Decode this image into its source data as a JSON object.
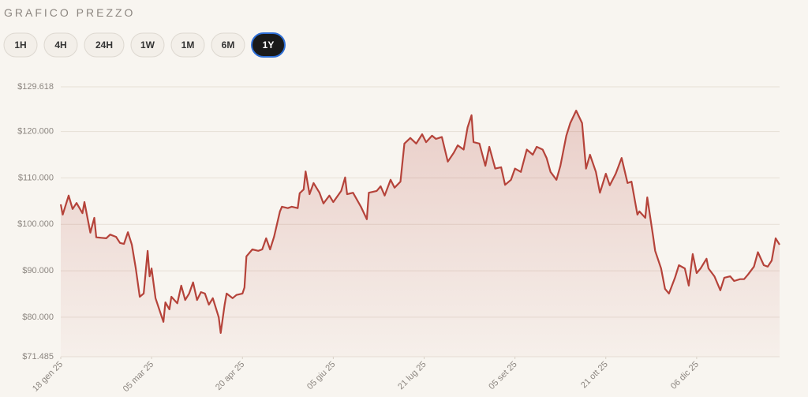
{
  "header": {
    "title": "GRAFICO PREZZO"
  },
  "range_buttons": {
    "options": [
      "1H",
      "4H",
      "24H",
      "1W",
      "1M",
      "6M",
      "1Y"
    ],
    "selected": 6
  },
  "chart_data": {
    "type": "line",
    "color": "#b5433a",
    "grid": true,
    "x": [
      "2025-01-18",
      "2025-01-19",
      "2025-01-22",
      "2025-01-24",
      "2025-01-26",
      "2025-01-29",
      "2025-01-30",
      "2025-02-02",
      "2025-02-04",
      "2025-02-05",
      "2025-02-10",
      "2025-02-12",
      "2025-02-15",
      "2025-02-17",
      "2025-02-19",
      "2025-02-21",
      "2025-02-23",
      "2025-02-25",
      "2025-02-27",
      "2025-03-01",
      "2025-03-03",
      "2025-03-04",
      "2025-03-05",
      "2025-03-07",
      "2025-03-11",
      "2025-03-12",
      "2025-03-14",
      "2025-03-15",
      "2025-03-18",
      "2025-03-20",
      "2025-03-22",
      "2025-03-24",
      "2025-03-26",
      "2025-03-28",
      "2025-03-30",
      "2025-04-01",
      "2025-04-03",
      "2025-04-05",
      "2025-04-08",
      "2025-04-09",
      "2025-04-11",
      "2025-04-12",
      "2025-04-15",
      "2025-04-17",
      "2025-04-20",
      "2025-04-21",
      "2025-04-22",
      "2025-04-25",
      "2025-04-28",
      "2025-04-30",
      "2025-05-02",
      "2025-05-04",
      "2025-05-06",
      "2025-05-09",
      "2025-05-10",
      "2025-05-13",
      "2025-05-15",
      "2025-05-18",
      "2025-05-19",
      "2025-05-21",
      "2025-05-22",
      "2025-05-24",
      "2025-05-26",
      "2025-05-29",
      "2025-05-31",
      "2025-06-03",
      "2025-06-05",
      "2025-06-09",
      "2025-06-11",
      "2025-06-12",
      "2025-06-15",
      "2025-06-19",
      "2025-06-22",
      "2025-06-23",
      "2025-06-27",
      "2025-06-29",
      "2025-07-01",
      "2025-07-04",
      "2025-07-06",
      "2025-07-09",
      "2025-07-11",
      "2025-07-14",
      "2025-07-17",
      "2025-07-20",
      "2025-07-22",
      "2025-07-25",
      "2025-07-27",
      "2025-07-30",
      "2025-08-02",
      "2025-08-05",
      "2025-08-07",
      "2025-08-10",
      "2025-08-12",
      "2025-08-14",
      "2025-08-15",
      "2025-08-18",
      "2025-08-21",
      "2025-08-23",
      "2025-08-26",
      "2025-08-29",
      "2025-08-31",
      "2025-09-03",
      "2025-09-05",
      "2025-09-08",
      "2025-09-11",
      "2025-09-14",
      "2025-09-16",
      "2025-09-19",
      "2025-09-21",
      "2025-09-23",
      "2025-09-26",
      "2025-09-28",
      "2025-10-01",
      "2025-10-03",
      "2025-10-06",
      "2025-10-09",
      "2025-10-11",
      "2025-10-13",
      "2025-10-16",
      "2025-10-18",
      "2025-10-21",
      "2025-10-23",
      "2025-10-26",
      "2025-10-29",
      "2025-11-01",
      "2025-11-03",
      "2025-11-06",
      "2025-11-07",
      "2025-11-10",
      "2025-11-11",
      "2025-11-14",
      "2025-11-15",
      "2025-11-18",
      "2025-11-20",
      "2025-11-22",
      "2025-11-25",
      "2025-11-27",
      "2025-11-30",
      "2025-12-02",
      "2025-12-04",
      "2025-12-06",
      "2025-12-08",
      "2025-12-11",
      "2025-12-12",
      "2025-12-15",
      "2025-12-18",
      "2025-12-20",
      "2025-12-23",
      "2025-12-25",
      "2025-12-28",
      "2025-12-30",
      "2026-01-01",
      "2026-01-04",
      "2026-01-06",
      "2026-01-09",
      "2026-01-11",
      "2026-01-13",
      "2026-01-15",
      "2026-01-17"
    ],
    "values": [
      104300,
      102100,
      106200,
      103300,
      104600,
      102400,
      104800,
      98200,
      101400,
      97200,
      97000,
      97800,
      97300,
      96000,
      95800,
      98300,
      95600,
      90500,
      84400,
      85100,
      94300,
      88800,
      90500,
      84100,
      79000,
      83200,
      81700,
      84400,
      83000,
      86800,
      83700,
      85100,
      87500,
      83700,
      85400,
      85100,
      82700,
      84100,
      80000,
      76600,
      82700,
      85100,
      84100,
      84800,
      85100,
      86400,
      93100,
      94600,
      94300,
      94600,
      97000,
      94600,
      97300,
      102800,
      103800,
      103500,
      103800,
      103500,
      106700,
      107500,
      111400,
      106500,
      108900,
      106800,
      104500,
      106200,
      104800,
      107200,
      110100,
      106500,
      106800,
      103800,
      101100,
      106800,
      107200,
      108200,
      106200,
      109600,
      107900,
      109200,
      117400,
      118600,
      117400,
      119400,
      117700,
      119100,
      118400,
      118800,
      113500,
      115400,
      117000,
      116100,
      120900,
      123500,
      117700,
      117400,
      112600,
      116700,
      112000,
      112300,
      108500,
      109600,
      112000,
      111300,
      116100,
      115000,
      116700,
      116100,
      114300,
      111300,
      109600,
      112600,
      119100,
      121800,
      124500,
      121800,
      112000,
      115000,
      111300,
      106800,
      110900,
      108400,
      110900,
      114300,
      108900,
      109200,
      102100,
      102800,
      101400,
      105800,
      97300,
      94300,
      90500,
      86100,
      85100,
      88500,
      91200,
      90500,
      86800,
      93600,
      89500,
      90500,
      92600,
      90500,
      88800,
      85800,
      88500,
      88800,
      87800,
      88200,
      88200,
      89200,
      90900,
      94000,
      91200,
      90900,
      92200,
      97000,
      95600
    ],
    "xlim": [
      "2025-01-18",
      "2026-01-17"
    ],
    "xticks": [
      {
        "value": "2025-01-18",
        "label": "18 gen 25"
      },
      {
        "value": "2025-03-05",
        "label": "05 mar 25"
      },
      {
        "value": "2025-04-20",
        "label": "20 apr 25"
      },
      {
        "value": "2025-06-05",
        "label": "05 giu 25"
      },
      {
        "value": "2025-07-21",
        "label": "21 lug 25"
      },
      {
        "value": "2025-09-05",
        "label": "05 set 25"
      },
      {
        "value": "2025-10-21",
        "label": "21 ott 25"
      },
      {
        "value": "2025-12-06",
        "label": "06 dic 25"
      }
    ],
    "ylim": [
      71485,
      129618
    ],
    "yticks": [
      {
        "value": 71485,
        "label": "$71.485"
      },
      {
        "value": 80000,
        "label": "$80.000"
      },
      {
        "value": 90000,
        "label": "$90.000"
      },
      {
        "value": 100000,
        "label": "$100.000"
      },
      {
        "value": 110000,
        "label": "$110.000"
      },
      {
        "value": 120000,
        "label": "$120.000"
      },
      {
        "value": 129618,
        "label": "$129.618"
      }
    ]
  }
}
